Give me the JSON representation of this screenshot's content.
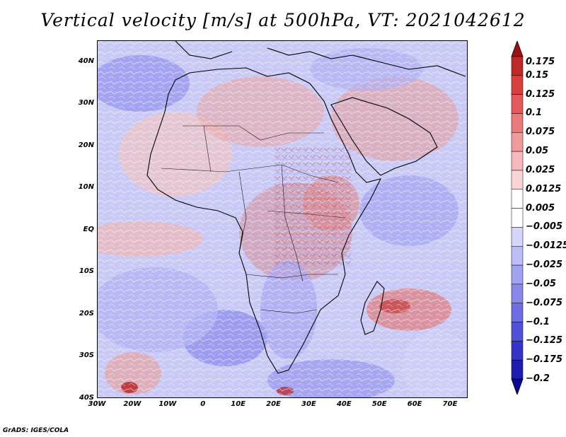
{
  "title": "Vertical velocity [m/s] at 500hPa, VT: 2021042612",
  "map": {
    "region": "Africa and surroundings",
    "variable": "Vertical velocity",
    "units": "m/s",
    "level": "500hPa",
    "valid_time": "2021042612",
    "lon_range": [
      -30,
      75
    ],
    "lat_range": [
      -40,
      45
    ],
    "colors": {
      "strong_positive": "#b01818",
      "positive": "#e07070",
      "near_zero": "#ffffff",
      "negative": "#8f8ff0",
      "strong_negative": "#2828c0",
      "coastline": "#000000"
    }
  },
  "axes": {
    "y_ticks": [
      "40N",
      "30N",
      "20N",
      "10N",
      "EQ",
      "10S",
      "20S",
      "30S",
      "40S"
    ],
    "y_values": [
      40,
      30,
      20,
      10,
      0,
      -10,
      -20,
      -30,
      -40
    ],
    "x_ticks": [
      "30W",
      "20W",
      "10W",
      "0",
      "10E",
      "20E",
      "30E",
      "40E",
      "50E",
      "60E",
      "70E"
    ],
    "x_values": [
      -30,
      -20,
      -10,
      0,
      10,
      20,
      30,
      40,
      50,
      60,
      70
    ]
  },
  "colorbar": {
    "levels": [
      "0.175",
      "0.15",
      "0.125",
      "0.1",
      "0.075",
      "0.05",
      "0.025",
      "0.0125",
      "0.005",
      "−0.005",
      "−0.0125",
      "−0.025",
      "−0.05",
      "−0.075",
      "−0.1",
      "−0.125",
      "−0.175",
      "−0.2"
    ],
    "colors": [
      "#a01010",
      "#c02828",
      "#d84040",
      "#e45a5a",
      "#ec7a7a",
      "#f29a9a",
      "#f6b8b8",
      "#fad4d4",
      "#ffffff",
      "#ffffff",
      "#d6d6fa",
      "#bcbcf6",
      "#a2a2f2",
      "#8888ec",
      "#6e6ee4",
      "#5050d8",
      "#3434c8",
      "#1c1cb0",
      "#0a0a96"
    ]
  },
  "credit": "GrADS: IGES/COLA"
}
